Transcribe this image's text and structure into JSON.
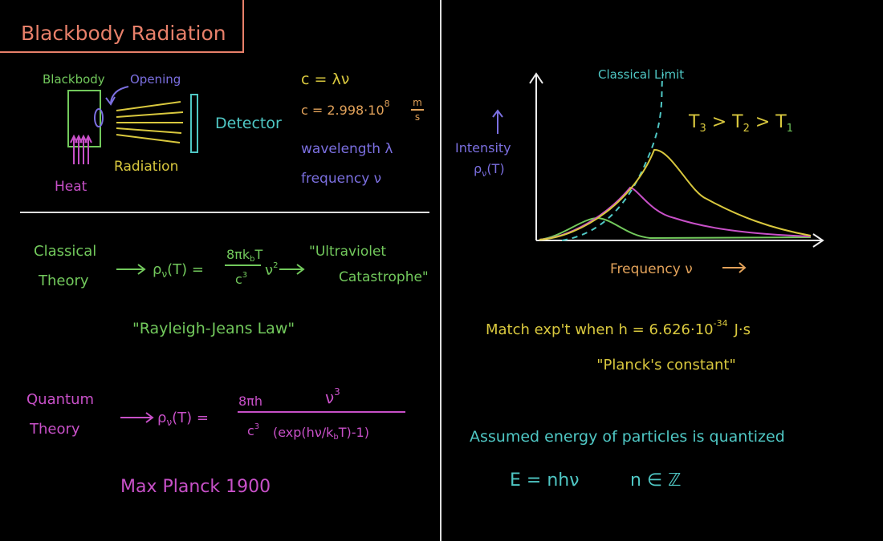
{
  "title": "Blackbody Radiation",
  "setup": {
    "blackbody": "Blackbody",
    "opening": "Opening",
    "heat": "Heat",
    "radiation": "Radiation",
    "detector": "Detector"
  },
  "relations": {
    "speed_formula": "c = λν",
    "speed_value": "c = 2.998·10",
    "speed_exponent": "8",
    "speed_unit_num": "m",
    "speed_unit_den": "s",
    "wavelength": "wavelength λ",
    "frequency": "frequency ν"
  },
  "classical": {
    "label_1": "Classical",
    "label_2": "Theory",
    "lhs": [
      "ρ",
      "ν",
      "(T) ="
    ],
    "numerator": [
      "8πk",
      "b",
      "T"
    ],
    "denominator": [
      "c",
      "3"
    ],
    "factor": [
      "ν",
      "2"
    ],
    "result_1": "\"Ultraviolet",
    "result_2": "Catastrophe\"",
    "law": "\"Rayleigh-Jeans Law\""
  },
  "quantum": {
    "label_1": "Quantum",
    "label_2": "Theory",
    "lhs": [
      "ρ",
      "ν",
      "(T) ="
    ],
    "numerator": "8πh",
    "denominator": [
      "c",
      "3"
    ],
    "fraction_top": [
      "ν",
      "3"
    ],
    "fraction_bottom": [
      "(exp(hν/k",
      "b",
      "T)-1)"
    ],
    "attribution": "Max Planck 1900"
  },
  "plot": {
    "limit": "Classical Limit",
    "ordering": [
      "T",
      "3",
      " > T",
      "2",
      " > T",
      "1"
    ],
    "y_label_1": "Intensity",
    "y_label_2": [
      "ρ",
      "ν",
      "(T)"
    ],
    "x_label": "Frequency ν"
  },
  "planck": {
    "statement": "Match exp't  when  h = 6.626·10",
    "exponent": "-34",
    "unit": "J·s",
    "name": "\"Planck's constant\""
  },
  "quantization": {
    "statement": "Assumed energy of particles is quantized",
    "energy": "E = nhν",
    "set": "n ∈ ℤ"
  }
}
